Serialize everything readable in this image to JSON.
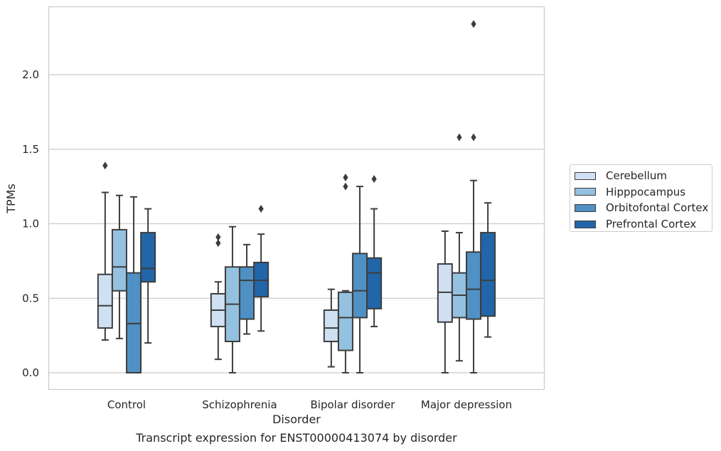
{
  "chart_data": {
    "type": "box",
    "caption": "Transcript expression for ENST00000413074 by disorder",
    "xlabel": "Disorder",
    "ylabel": "TPMs",
    "ylim": [
      -0.11,
      2.46
    ],
    "yticks": [
      "0.0",
      "0.5",
      "1.0",
      "1.5",
      "2.0"
    ],
    "grid": "horizontal",
    "legend_position": "right",
    "categories": [
      "Control",
      "Schizophrenia",
      "Bipolar disorder",
      "Major depression"
    ],
    "series": [
      {
        "name": "Cerebellum",
        "color": "#cfe0f2",
        "boxes": [
          {
            "whislo": 0.22,
            "q1": 0.3,
            "med": 0.45,
            "q3": 0.66,
            "whishi": 1.21,
            "fliers": [
              1.39
            ]
          },
          {
            "whislo": 0.09,
            "q1": 0.31,
            "med": 0.42,
            "q3": 0.53,
            "whishi": 0.61,
            "fliers": [
              0.87,
              0.91
            ]
          },
          {
            "whislo": 0.04,
            "q1": 0.21,
            "med": 0.3,
            "q3": 0.42,
            "whishi": 0.56,
            "fliers": []
          },
          {
            "whislo": 0.0,
            "q1": 0.34,
            "med": 0.54,
            "q3": 0.73,
            "whishi": 0.95,
            "fliers": []
          }
        ]
      },
      {
        "name": "Hipppocampus",
        "color": "#94c1df",
        "boxes": [
          {
            "whislo": 0.23,
            "q1": 0.55,
            "med": 0.71,
            "q3": 0.96,
            "whishi": 1.19,
            "fliers": []
          },
          {
            "whislo": 0.0,
            "q1": 0.21,
            "med": 0.46,
            "q3": 0.71,
            "whishi": 0.98,
            "fliers": []
          },
          {
            "whislo": 0.0,
            "q1": 0.15,
            "med": 0.37,
            "q3": 0.54,
            "whishi": 0.55,
            "fliers": [
              1.25,
              1.31
            ]
          },
          {
            "whislo": 0.08,
            "q1": 0.37,
            "med": 0.52,
            "q3": 0.67,
            "whishi": 0.94,
            "fliers": [
              1.58
            ]
          }
        ]
      },
      {
        "name": "Orbitofontal Cortex",
        "color": "#4f91c4",
        "boxes": [
          {
            "whislo": 0.0,
            "q1": 0.0,
            "med": 0.33,
            "q3": 0.67,
            "whishi": 1.18,
            "fliers": []
          },
          {
            "whislo": 0.26,
            "q1": 0.36,
            "med": 0.62,
            "q3": 0.71,
            "whishi": 0.86,
            "fliers": []
          },
          {
            "whislo": 0.0,
            "q1": 0.37,
            "med": 0.55,
            "q3": 0.8,
            "whishi": 1.25,
            "fliers": []
          },
          {
            "whislo": 0.0,
            "q1": 0.36,
            "med": 0.56,
            "q3": 0.81,
            "whishi": 1.29,
            "fliers": [
              1.58,
              2.34
            ]
          }
        ]
      },
      {
        "name": "Prefrontal Cortex",
        "color": "#2166a8",
        "boxes": [
          {
            "whislo": 0.2,
            "q1": 0.61,
            "med": 0.7,
            "q3": 0.94,
            "whishi": 1.1,
            "fliers": []
          },
          {
            "whislo": 0.28,
            "q1": 0.51,
            "med": 0.62,
            "q3": 0.74,
            "whishi": 0.93,
            "fliers": [
              1.1
            ]
          },
          {
            "whislo": 0.31,
            "q1": 0.43,
            "med": 0.67,
            "q3": 0.77,
            "whishi": 1.1,
            "fliers": [
              1.3
            ]
          },
          {
            "whislo": 0.24,
            "q1": 0.38,
            "med": 0.62,
            "q3": 0.94,
            "whishi": 1.14,
            "fliers": []
          }
        ]
      }
    ]
  }
}
